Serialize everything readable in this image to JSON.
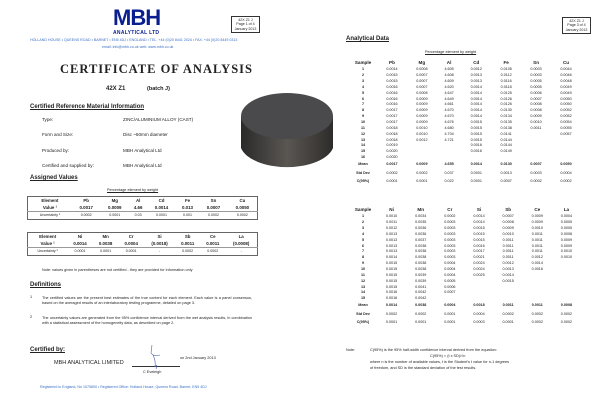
{
  "page1": {
    "logo": "MBH",
    "logo_sub": "ANALYTICAL LTD",
    "ref": [
      "42X Z1 J",
      "Page 1 of 4",
      "January 2013"
    ],
    "address": "HOLLAND HOUSE • QUEENS ROAD • BARNET • EN5 4DJ • ENGLAND • TEL. +44 (0)20 8441 2024 • FAX. +44 (0)20 8449 0313",
    "contact": "email: info@mbh.co.uk   web: www.mbh.co.uk",
    "title": "CERTIFICATE OF ANALYSIS",
    "product": "42X Z1",
    "batch": "(batch J)",
    "crm_heading": "Certified Reference Material Information",
    "info": [
      {
        "label": "Type:",
        "value": "ZINC/ALUMINIUM ALLOY    (CAST)"
      },
      {
        "label": "Form and Size:",
        "value": "Disc ~50mm diameter"
      },
      {
        "label": "Produced by:",
        "value": "MBH Analytical Ltd"
      },
      {
        "label": "Certified and supplied by:",
        "value": "MBH Analytical Ltd"
      }
    ],
    "assigned_heading": "Assigned Values",
    "pct_caption": "Percentage element by weight",
    "assigned_tables": [
      {
        "rows": [
          [
            "Element",
            "Pb",
            "Mg",
            "Al",
            "Cd",
            "Fe",
            "Sn",
            "Cu"
          ],
          [
            "Value ¹",
            "0.0017",
            "0.0009",
            "4.66",
            "0.0014",
            "0.013",
            "0.0007",
            "0.0050"
          ],
          [
            "Uncertainty ²",
            "0.0002",
            "0.0001",
            "0.03",
            "0.0001",
            "0.001",
            "0.0002",
            "0.0002"
          ]
        ]
      },
      {
        "rows": [
          [
            "Element",
            "Ni",
            "Mn",
            "Cr",
            "Si",
            "Sb",
            "Ce",
            "La"
          ],
          [
            "Value ¹",
            "0.0014",
            "0.0038",
            "0.0004",
            "(0.0018)",
            "0.0011",
            "0.0011",
            "(0.0008)"
          ],
          [
            "Uncertainty ²",
            "0.0001",
            "0.0001",
            "0.0001",
            "-",
            "0.0002",
            "0.0002",
            "-"
          ]
        ]
      }
    ],
    "note": "Note:  values given in parentheses are not certified - they are provided for information only",
    "definitions_heading": "Definitions",
    "definitions": [
      {
        "num": "1",
        "text": "The certified values are the present best estimates of the true content for each element.  Each value is a panel consensus, based on the averaged results of an interlaboratory testing programme, detailed on page 3."
      },
      {
        "num": "2",
        "text": "The uncertainty values are generated from the 95% confidence interval derived from the wet analysis results, in combination with a statistical assessment of the homogeneity data, as described on page 2."
      }
    ],
    "certified_by": "Certified by:",
    "company": "MBH  ANALYTICAL  LIMITED",
    "date": "on 2nd January 2013",
    "signatory": "C Eveleigh",
    "footer": "Registered in England, No 1075800 • Registered Office: Holland House, Queens Road, Barnet, EN5 4DJ"
  },
  "page2": {
    "ref": [
      "42X Z1 J",
      "Page 3 of 4",
      "January 2013"
    ],
    "heading": "Analytical Data",
    "pct_caption": "Percentage element by weight",
    "tables": [
      {
        "header": [
          "Sample",
          "Pb",
          "Mg",
          "Al",
          "Cd",
          "Fe",
          "Sn",
          "Cu"
        ],
        "rows": [
          [
            "1",
            "0.0014",
            "0.0008",
            "4.605",
            "0.0012",
            "0.0105",
            "0.0003",
            "0.0044"
          ],
          [
            "2",
            "0.0015",
            "0.0007",
            "4.608",
            "0.0013",
            "0.0112",
            "0.0003",
            "0.0046"
          ],
          [
            "3",
            "0.0015",
            "0.0007",
            "4.609",
            "0.0013",
            "0.0116",
            "0.0005",
            "0.0048"
          ],
          [
            "4",
            "0.0016",
            "0.0007",
            "4.620",
            "0.0014",
            "0.0118",
            "0.0005",
            "0.0049"
          ],
          [
            "5",
            "0.0016",
            "0.0008",
            "4.647",
            "0.0014",
            "0.0125",
            "0.0006",
            "0.0049"
          ],
          [
            "6",
            "0.0016",
            "0.0009",
            "4.649",
            "0.0014",
            "0.0126",
            "0.0007",
            "0.0050"
          ],
          [
            "7",
            "0.0016",
            "0.0009",
            "4.661",
            "0.0014",
            "0.0126",
            "0.0008",
            "0.0050"
          ],
          [
            "8",
            "0.0017",
            "0.0009",
            "4.670",
            "0.0014",
            "0.0130",
            "0.0008",
            "0.0052"
          ],
          [
            "9",
            "0.0017",
            "0.0009",
            "4.670",
            "0.0014",
            "0.0134",
            "0.0009",
            "0.0052"
          ],
          [
            "10",
            "0.0017",
            "0.0009",
            "4.676",
            "0.0015",
            "0.0135",
            "0.0010",
            "0.0054"
          ],
          [
            "11",
            "0.0018",
            "0.0010",
            "4.680",
            "0.0015",
            "0.0138",
            "0.0011",
            "0.0055"
          ],
          [
            "12",
            "0.0018",
            "0.0010",
            "4.704",
            "0.0015",
            "0.0141",
            "",
            "0.0057"
          ],
          [
            "13",
            "0.0018",
            "0.0012",
            "4.721",
            "0.0015",
            "0.0144",
            "",
            ""
          ],
          [
            "14",
            "0.0019",
            "",
            "",
            "0.0016",
            "0.0144",
            "",
            ""
          ],
          [
            "15",
            "0.0020",
            "",
            "",
            "0.0016",
            "0.0149",
            "",
            ""
          ],
          [
            "16",
            "0.0020",
            "",
            "",
            "",
            "",
            "",
            ""
          ]
        ],
        "stats": [
          [
            "Mean",
            "0.0017",
            "0.0009",
            "4.655",
            "0.0014",
            "0.0130",
            "0.0007",
            "0.0050"
          ],
          [
            "Std Dev",
            "0.0002",
            "0.0002",
            "0.037",
            "0.0001",
            "0.0013",
            "0.0003",
            "0.0004"
          ],
          [
            "C(95%)",
            "0.0001",
            "0.0001",
            "0.022",
            "0.0001",
            "0.0007",
            "0.0002",
            "0.0002"
          ]
        ]
      },
      {
        "header": [
          "Sample",
          "Ni",
          "Mn",
          "Cr",
          "Si",
          "Sb",
          "Ce",
          "La"
        ],
        "rows": [
          [
            "1",
            "0.0010",
            "0.0034",
            "0.0002",
            "0.0014",
            "0.0007",
            "0.0009",
            "0.0004"
          ],
          [
            "2",
            "0.0011",
            "0.0035",
            "0.0003",
            "0.0014",
            "0.0008",
            "0.0009",
            "0.0005"
          ],
          [
            "3",
            "0.0012",
            "0.0036",
            "0.0003",
            "0.0015",
            "0.0009",
            "0.0010",
            "0.0005"
          ],
          [
            "4",
            "0.0013",
            "0.0036",
            "0.0003",
            "0.0015",
            "0.0010",
            "0.0011",
            "0.0008"
          ],
          [
            "5",
            "0.0013",
            "0.0037",
            "0.0003",
            "0.0015",
            "0.0011",
            "0.0011",
            "0.0009"
          ],
          [
            "6",
            "0.0013",
            "0.0038",
            "0.0003",
            "0.0016",
            "0.0011",
            "0.0011",
            "0.0009"
          ],
          [
            "7",
            "0.0013",
            "0.0038",
            "0.0003",
            "0.0017",
            "0.0011",
            "0.0011",
            "0.0010"
          ],
          [
            "8",
            "0.0014",
            "0.0038",
            "0.0003",
            "0.0021",
            "0.0011",
            "0.0012",
            "0.0010"
          ],
          [
            "9",
            "0.0015",
            "0.0038",
            "0.0004",
            "0.0024",
            "0.0012",
            "0.0014",
            ""
          ],
          [
            "10",
            "0.0015",
            "0.0038",
            "0.0004",
            "0.0024",
            "0.0013",
            "0.0016",
            ""
          ],
          [
            "11",
            "0.0015",
            "0.0039",
            "0.0004",
            "0.0025",
            "0.0014",
            "",
            ""
          ],
          [
            "12",
            "0.0015",
            "0.0039",
            "0.0005",
            "",
            "0.0015",
            "",
            ""
          ],
          [
            "13",
            "0.0015",
            "0.0041",
            "0.0006",
            "",
            "",
            "",
            ""
          ],
          [
            "14",
            "0.0016",
            "0.0042",
            "0.0007",
            "",
            "",
            "",
            ""
          ],
          [
            "15",
            "0.0016",
            "0.0042",
            "",
            "",
            "",
            "",
            ""
          ]
        ],
        "stats": [
          [
            "Mean",
            "0.0014",
            "0.0038",
            "0.0004",
            "0.0018",
            "0.0011",
            "0.0011",
            "0.0008"
          ],
          [
            "Std Dev",
            "0.0002",
            "0.0002",
            "0.0001",
            "0.0004",
            "0.0002",
            "0.0002",
            "0.0002"
          ],
          [
            "C(95%)",
            "0.0001",
            "0.0001",
            "0.0001",
            "0.0003",
            "0.0001",
            "0.0002",
            "0.0002"
          ]
        ]
      }
    ],
    "note_label": "Note:",
    "note_lines": [
      "C(95%) is the 95% half-width confidence interval derived from the equation:",
      "C(95%) = (t x SD)/√n",
      "where n is the number of available values, t is the Student's t value for n-1 degrees",
      "of freedom, and SD is the standard deviation of the test results."
    ]
  },
  "colors": {
    "brand": "#0a1f8f",
    "link": "#3a6fc6"
  }
}
